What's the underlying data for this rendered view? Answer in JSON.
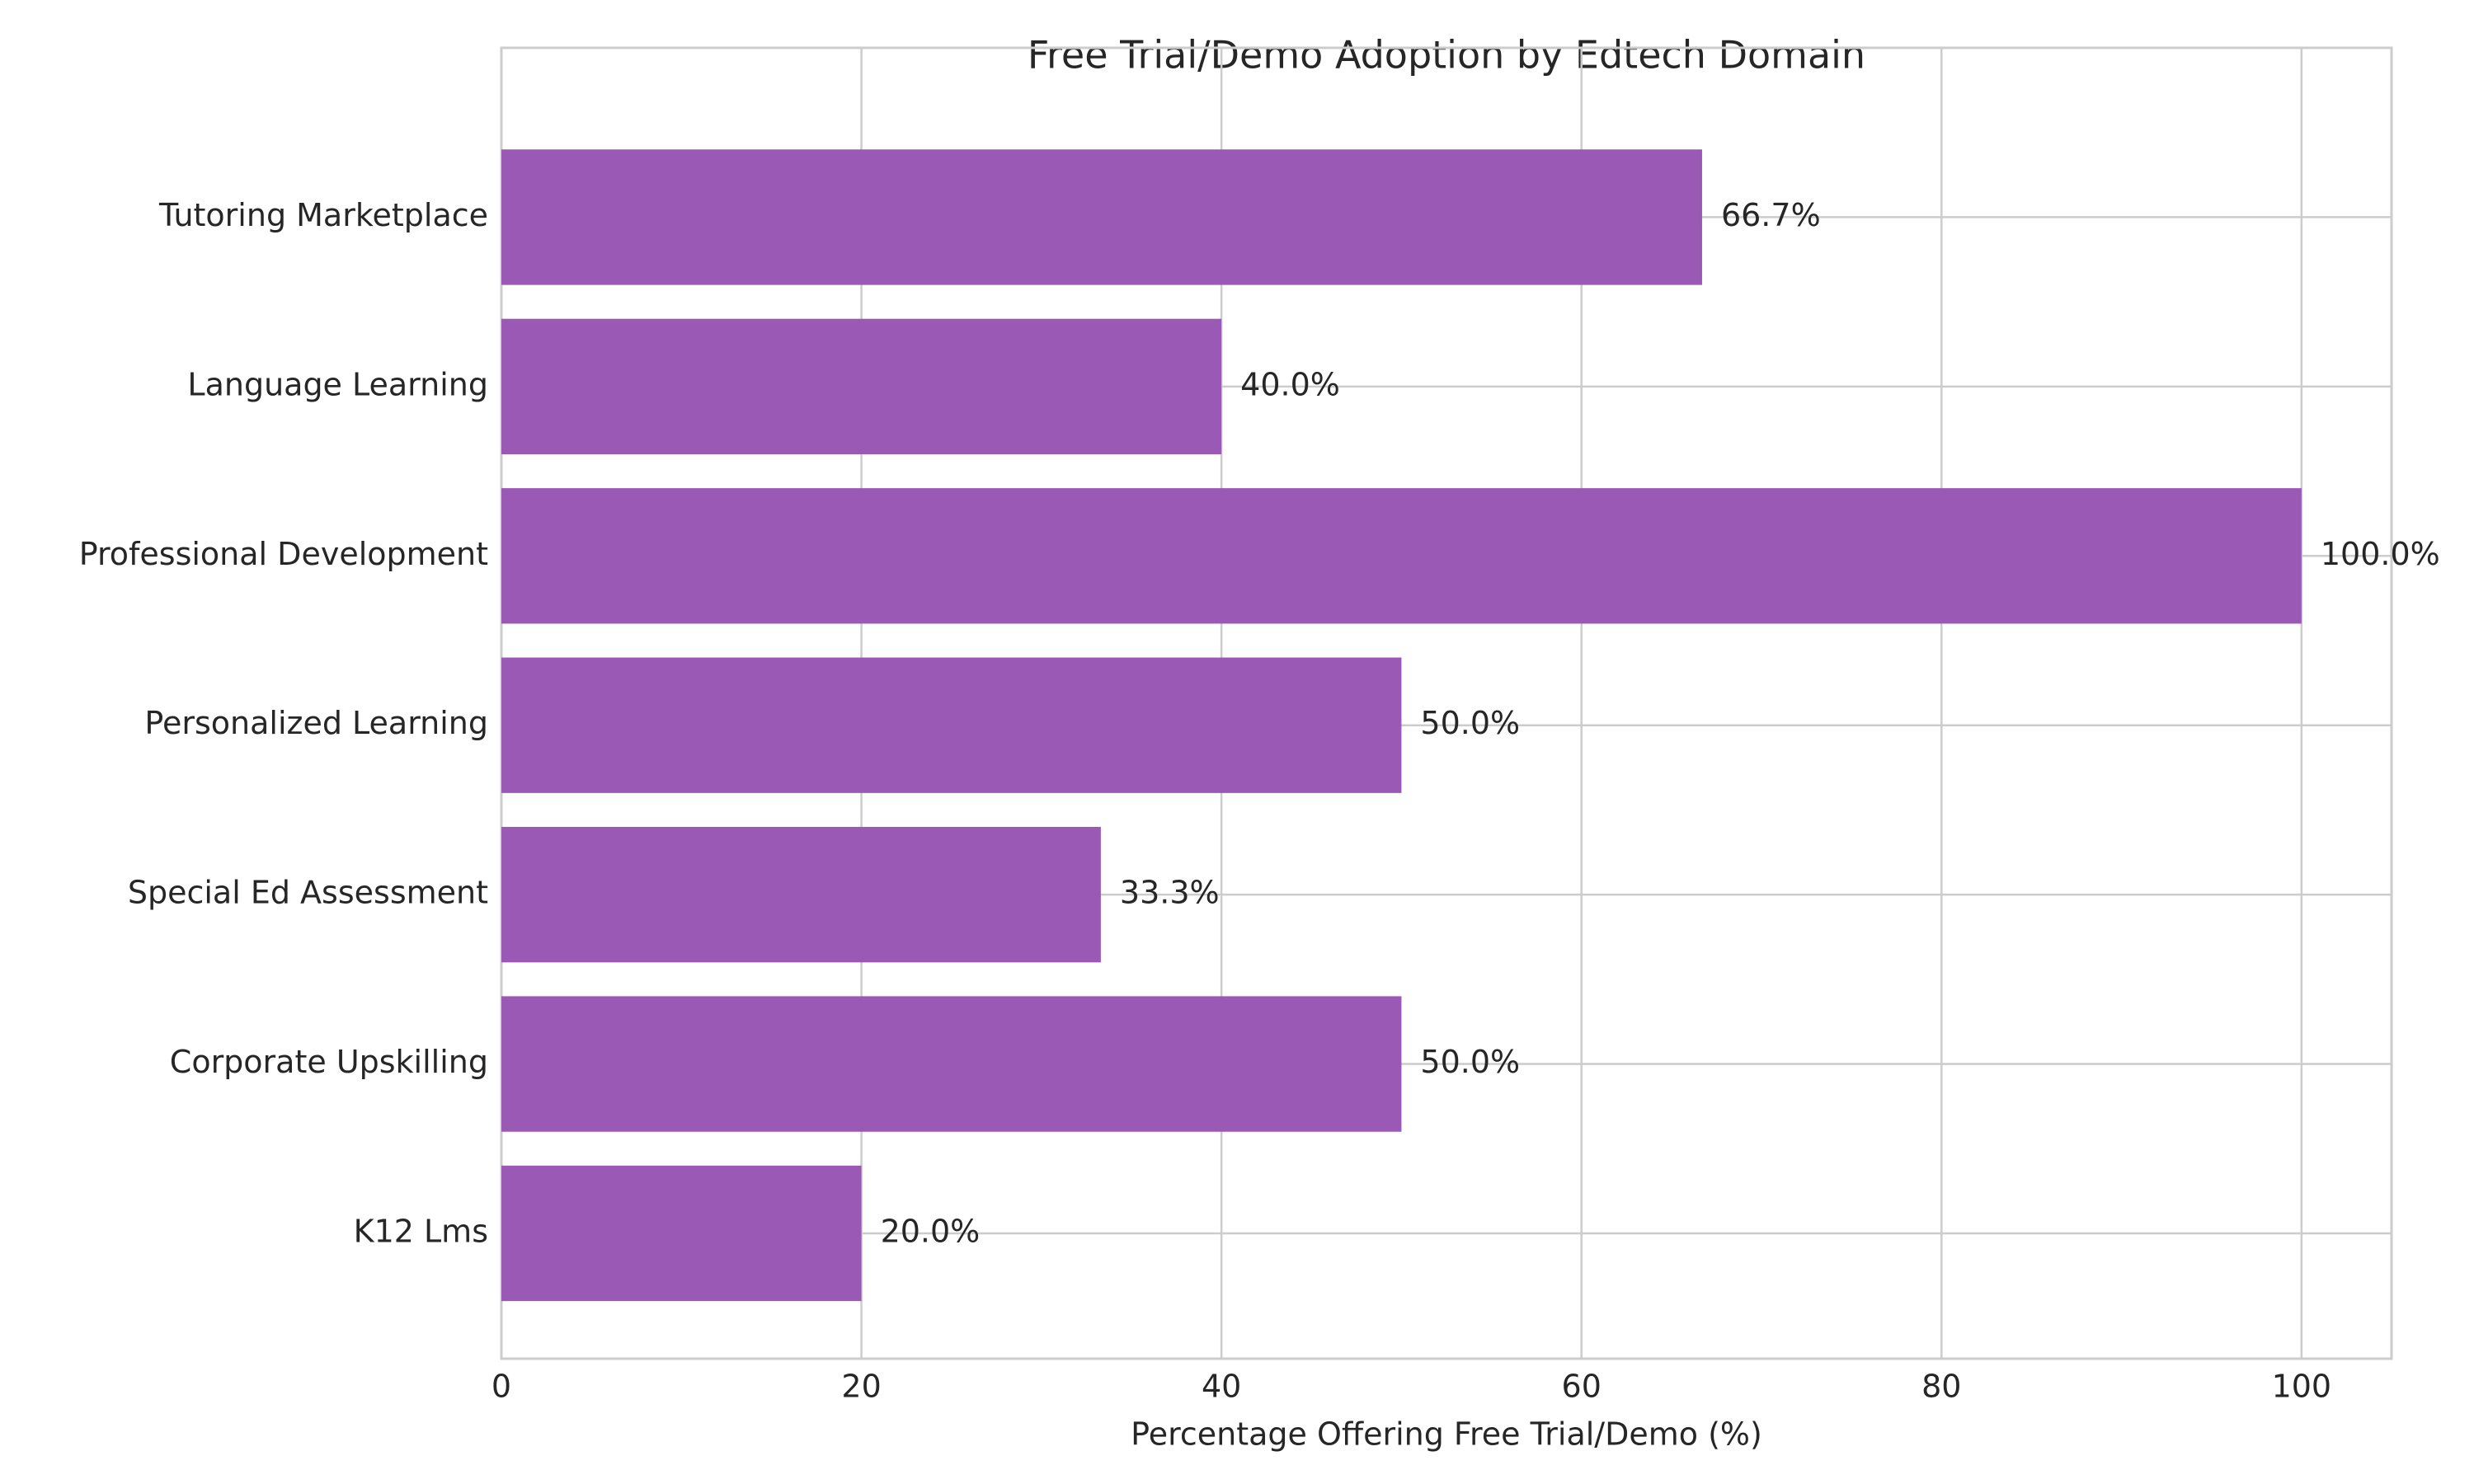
{
  "chart_data": {
    "type": "barh",
    "title": "Free Trial/Demo Adoption by Edtech Domain",
    "xlabel": "Percentage Offering Free Trial/Demo (%)",
    "categories": [
      "K12 Lms",
      "Corporate Upskilling",
      "Special Ed Assessment",
      "Personalized Learning",
      "Professional Development",
      "Language Learning",
      "Tutoring Marketplace"
    ],
    "values": [
      20,
      50,
      33.3,
      50,
      100,
      40,
      66.7
    ],
    "value_labels": [
      "20.0%",
      "50.0%",
      "33.3%",
      "50.0%",
      "100.0%",
      "40.0%",
      "66.7%"
    ],
    "color": "#9b59b6",
    "xlim": [
      0,
      105
    ],
    "xticks": [
      0,
      20,
      40,
      60,
      80,
      100
    ],
    "grid": true
  }
}
